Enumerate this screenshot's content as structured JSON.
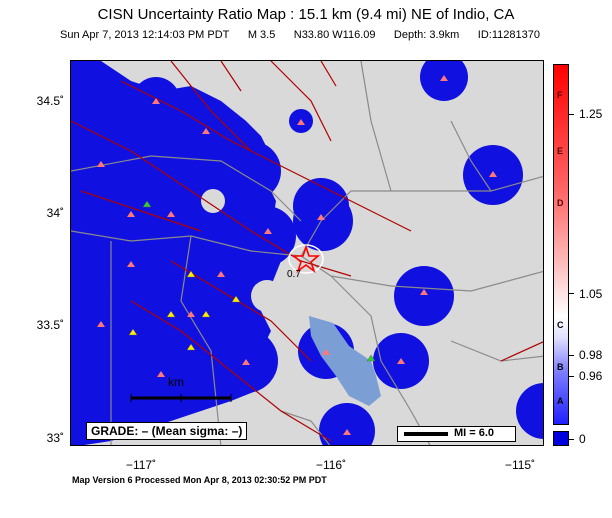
{
  "title": "CISN Uncertainty Ratio Map : 15.1 km (9.4 mi) NE of Indio, CA",
  "subtitle": {
    "datetime": "Sun Apr  7, 2013 12:14:03 PM PDT",
    "magnitude": "M 3.5",
    "location": "N33.80 W116.09",
    "depth": "Depth: 3.9km",
    "id": "ID:11281370"
  },
  "axes": {
    "lat_labels": [
      "34.5˚",
      "34˚",
      "33.5˚",
      "33˚"
    ],
    "lon_labels": [
      "−117˚",
      "−116˚",
      "−115˚"
    ]
  },
  "map": {
    "epicenter_value_label": "0.7",
    "scale_label": "km",
    "grade_box": "GRADE: – (Mean sigma: –)",
    "mi_legend": "MI = 6.0",
    "colors": {
      "uncertainty_low": "#0000ee",
      "background": "#d9d9d9",
      "water": "#7b9fd4",
      "faults": "#b00000",
      "roads": "#8a8a8a",
      "stations": "#ff7777",
      "stations_other": "#ffee00"
    }
  },
  "colorbar": {
    "letters": [
      "F",
      "E",
      "D",
      "C",
      "B",
      "A"
    ],
    "tick_labels": [
      "1.25",
      "1.05",
      "0.98",
      "0.96",
      "0"
    ]
  },
  "footer": "Map Version 6 Processed Mon Apr  8, 2013 02:30:52 PM PDT"
}
